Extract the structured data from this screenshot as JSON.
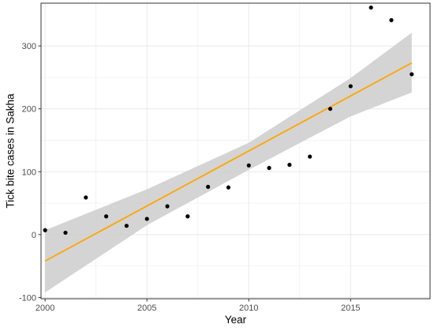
{
  "chart_data": {
    "type": "scatter",
    "xlabel": "Year",
    "ylabel": "Tick bite cases in Sakha",
    "xlim": [
      1999.8,
      2018.9
    ],
    "ylim": [
      -102,
      368
    ],
    "x_ticks": [
      2000,
      2005,
      2010,
      2015
    ],
    "y_ticks": [
      -100,
      0,
      100,
      200,
      300
    ],
    "grid": true,
    "points": [
      {
        "x": 2000,
        "y": 7
      },
      {
        "x": 2001,
        "y": 3
      },
      {
        "x": 2002,
        "y": 59
      },
      {
        "x": 2003,
        "y": 29
      },
      {
        "x": 2004,
        "y": 14
      },
      {
        "x": 2005,
        "y": 25
      },
      {
        "x": 2006,
        "y": 45
      },
      {
        "x": 2007,
        "y": 29
      },
      {
        "x": 2008,
        "y": 76
      },
      {
        "x": 2009,
        "y": 75
      },
      {
        "x": 2010,
        "y": 110
      },
      {
        "x": 2011,
        "y": 106
      },
      {
        "x": 2012,
        "y": 111
      },
      {
        "x": 2013,
        "y": 124
      },
      {
        "x": 2014,
        "y": 200
      },
      {
        "x": 2015,
        "y": 236
      },
      {
        "x": 2016,
        "y": 361
      },
      {
        "x": 2017,
        "y": 341
      },
      {
        "x": 2018,
        "y": 255
      }
    ],
    "fit_line": {
      "x": [
        2000,
        2018
      ],
      "y": [
        -42,
        273
      ]
    },
    "confidence_band": {
      "x": [
        2000,
        2005,
        2010,
        2015,
        2018
      ],
      "lower": [
        -92,
        15,
        103,
        188,
        226
      ],
      "upper": [
        7,
        72,
        146,
        249,
        321
      ]
    },
    "colors": {
      "points": "#000000",
      "fit_line": "#FFA500",
      "band": "#cccccc",
      "grid": "#ebebeb",
      "panel_border": "#333333"
    }
  }
}
